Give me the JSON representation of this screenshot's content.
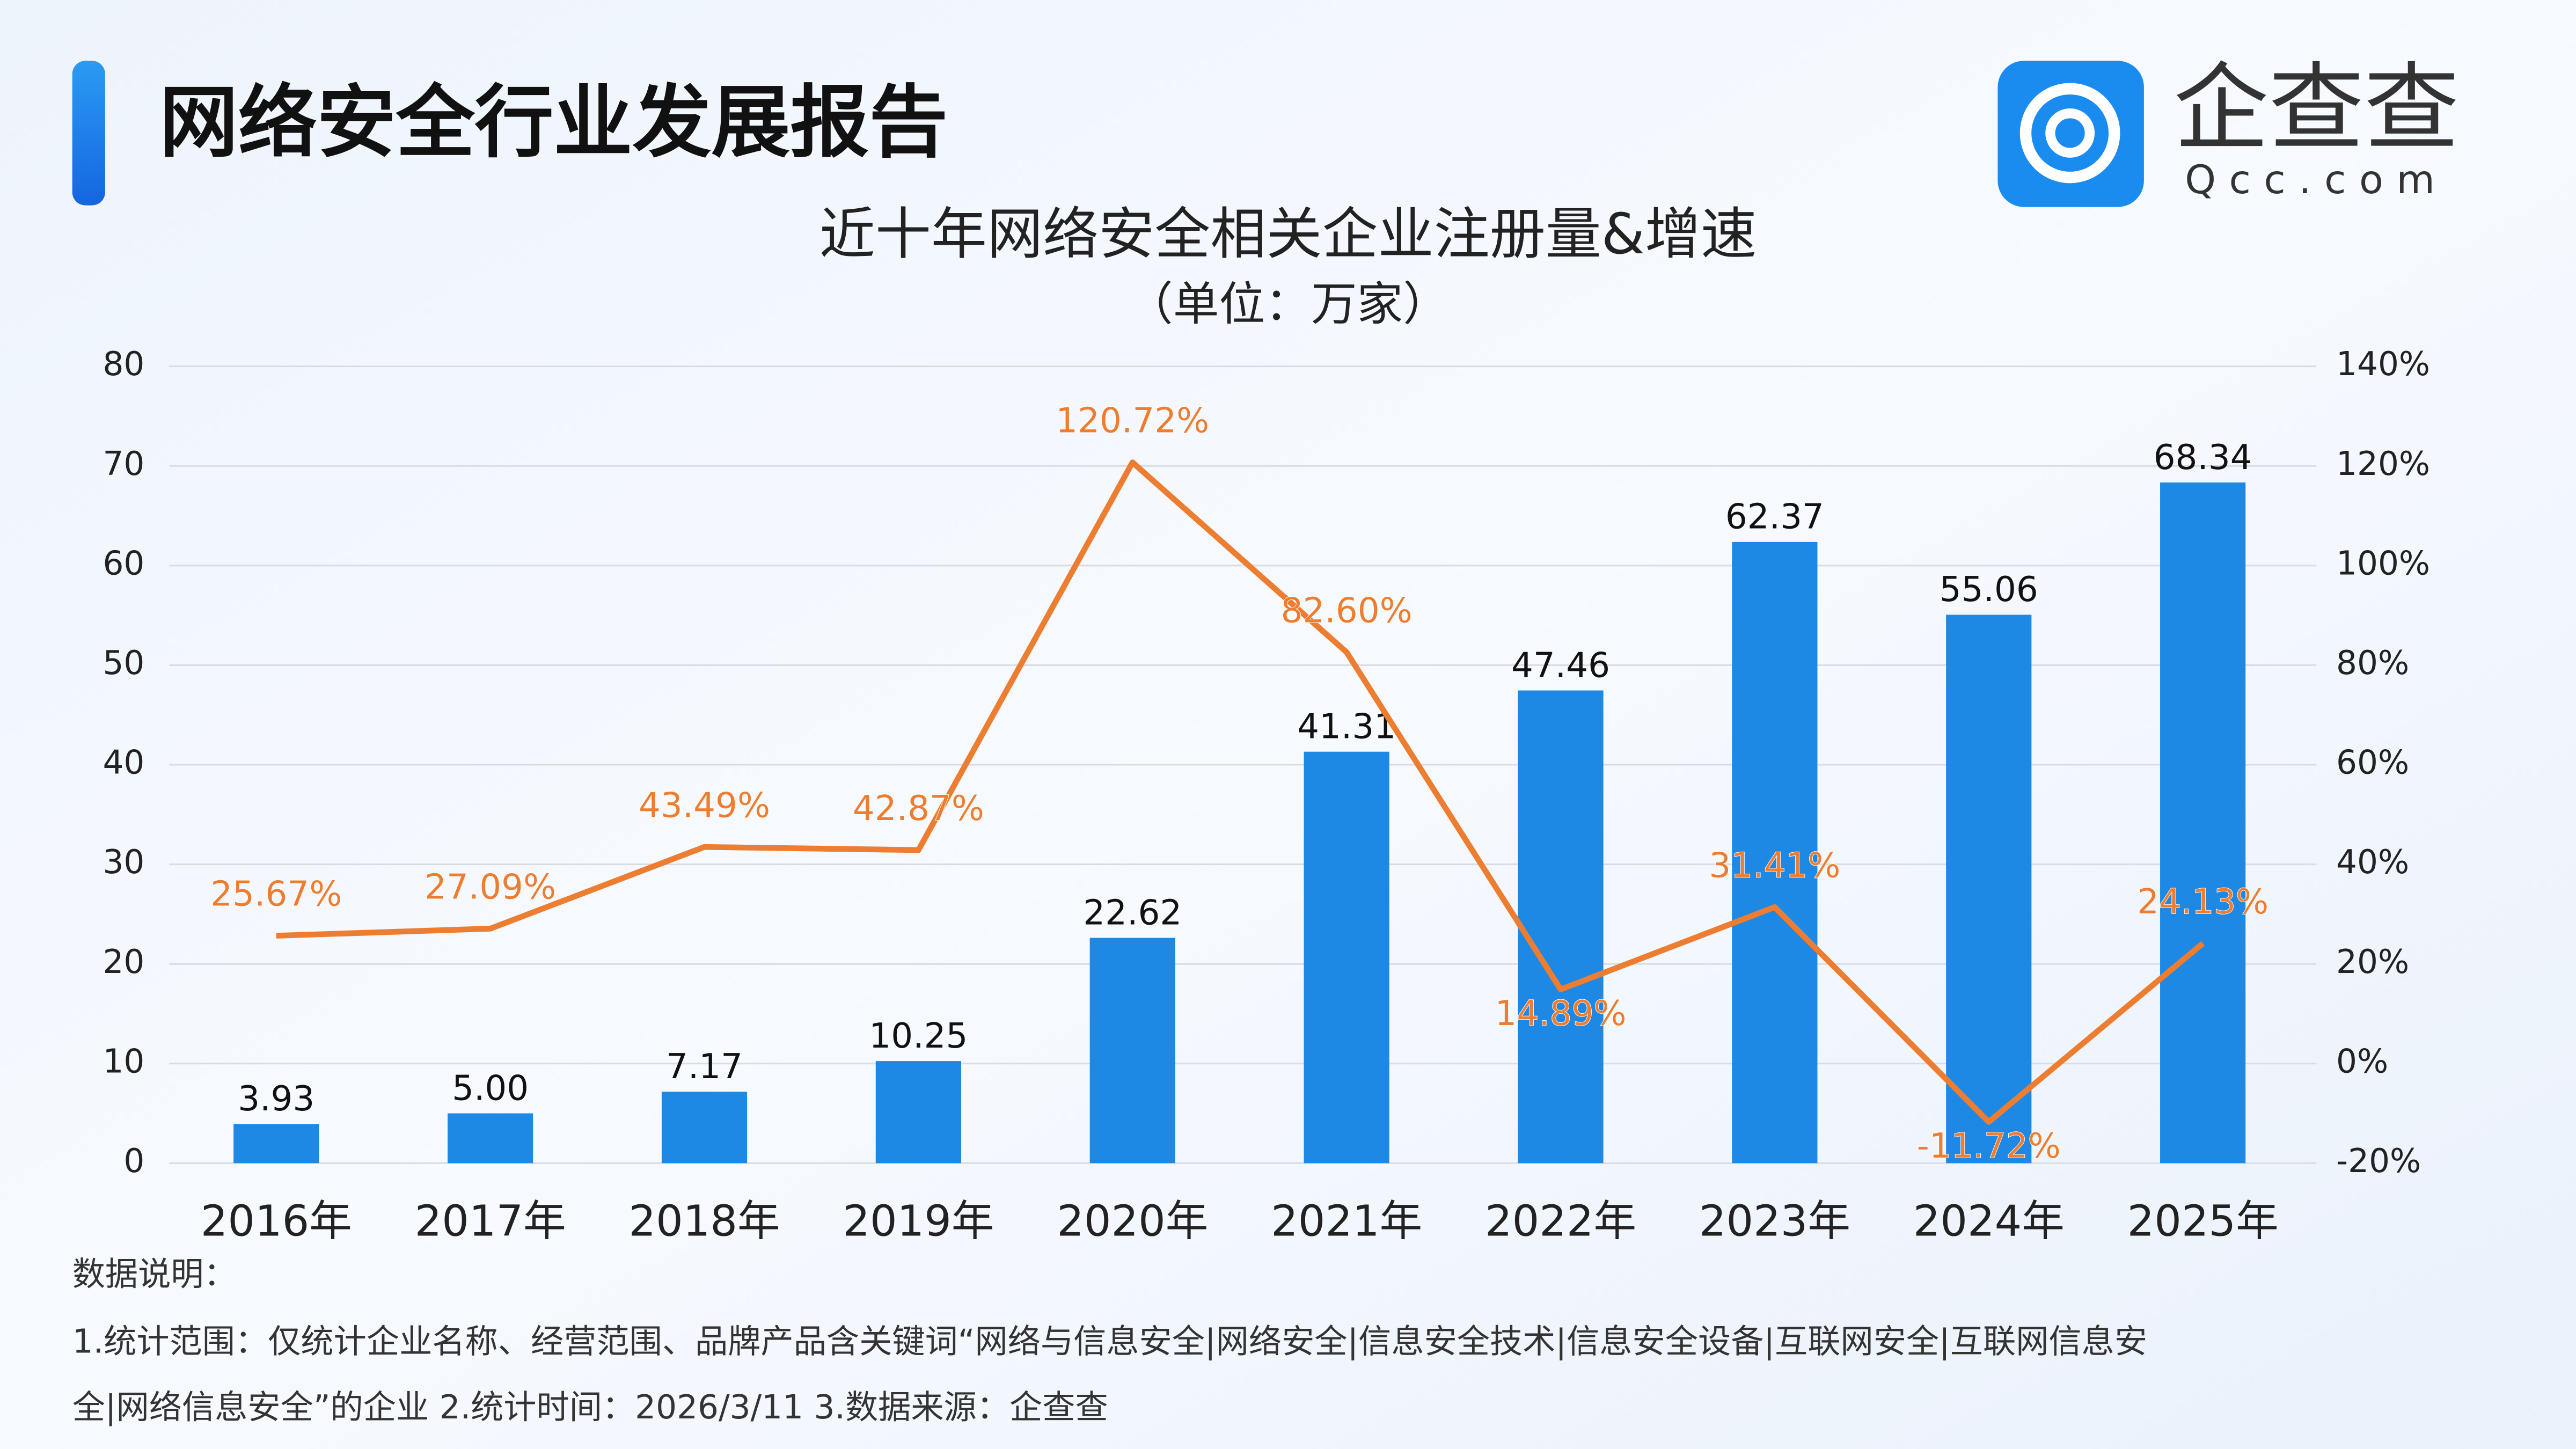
{
  "header": {
    "title": "网络安全行业发展报告",
    "logo_text": "企查查",
    "logo_domain": "Qcc.com"
  },
  "chart_data": {
    "type": "bar",
    "title": "近十年网络安全相关企业注册量&增速",
    "subtitle": "（单位：万家）",
    "categories": [
      "2016年",
      "2017年",
      "2018年",
      "2019年",
      "2020年",
      "2021年",
      "2022年",
      "2023年",
      "2024年",
      "2025年"
    ],
    "series": [
      {
        "type": "bar",
        "color": "#1e88e5",
        "values": [
          3.93,
          5.0,
          7.17,
          10.25,
          22.62,
          41.31,
          47.46,
          62.37,
          55.06,
          68.34
        ],
        "value_labels": [
          "3.93",
          "5.00",
          "7.17",
          "10.25",
          "22.62",
          "41.31",
          "47.46",
          "62.37",
          "55.06",
          "68.34"
        ]
      },
      {
        "type": "line",
        "axis": "y2",
        "color": "#ed7d31",
        "values": [
          25.67,
          27.09,
          43.49,
          42.87,
          120.72,
          82.6,
          14.89,
          31.41,
          -11.72,
          24.13
        ],
        "value_labels": [
          "25.67%",
          "27.09%",
          "43.49%",
          "42.87%",
          "120.72%",
          "82.60%",
          "14.89%",
          "31.41%",
          "-11.72%",
          "24.13%"
        ]
      }
    ],
    "ylim": [
      0,
      80
    ],
    "yticks": [
      0,
      10,
      20,
      30,
      40,
      50,
      60,
      70,
      80
    ],
    "y2lim": [
      -20,
      140
    ],
    "y2ticks": [
      {
        "value": -20,
        "label": "-20%"
      },
      {
        "value": 0,
        "label": "0%"
      },
      {
        "value": 20,
        "label": "20%"
      },
      {
        "value": 40,
        "label": "40%"
      },
      {
        "value": 60,
        "label": "60%"
      },
      {
        "value": 80,
        "label": "80%"
      },
      {
        "value": 100,
        "label": "100%"
      },
      {
        "value": 120,
        "label": "120%"
      },
      {
        "value": 140,
        "label": "140%"
      }
    ],
    "grid": true
  },
  "notes": {
    "label": "数据说明：",
    "lines": [
      "1.统计范围：仅统计企业名称、经营范围、品牌产品含关键词“网络与信息安全|网络安全|信息安全技术|信息安全设备|互联网安全|互联网信息安",
      "全|网络信息安全”的企业  2.统计时间：2026/3/11  3.数据来源：企查查"
    ]
  }
}
